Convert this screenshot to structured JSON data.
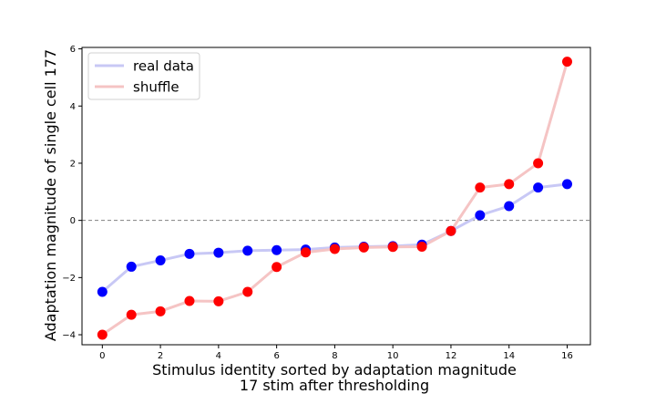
{
  "chart_data": {
    "type": "line",
    "xlabel_lines": [
      "Stimulus identity sorted by adaptation magnitude",
      "17 stim after thresholding"
    ],
    "ylabel": "Adaptation magnitude of single cell 177",
    "x": [
      0,
      1,
      2,
      3,
      4,
      5,
      6,
      7,
      8,
      9,
      10,
      11,
      12,
      13,
      14,
      15,
      16
    ],
    "xlim": [
      -0.7,
      16.8
    ],
    "ylim": [
      -4.35,
      6.05
    ],
    "xticks": [
      0,
      2,
      4,
      6,
      8,
      10,
      12,
      14,
      16
    ],
    "yticks": [
      -4,
      -2,
      0,
      2,
      4,
      6
    ],
    "reference_line": {
      "y": 0,
      "style": "dashed",
      "color": "#808080"
    },
    "legend_position": "top-left",
    "series": [
      {
        "name": "real data",
        "line_color": "#c8c8f5",
        "marker_color": "#0000ff",
        "values": [
          -2.5,
          -1.62,
          -1.4,
          -1.17,
          -1.13,
          -1.06,
          -1.04,
          -1.02,
          -0.95,
          -0.92,
          -0.9,
          -0.85,
          -0.37,
          0.18,
          0.5,
          1.15,
          1.27
        ]
      },
      {
        "name": "shuffle",
        "line_color": "#f5c4c4",
        "marker_color": "#ff0000",
        "values": [
          -4.0,
          -3.3,
          -3.18,
          -2.82,
          -2.83,
          -2.5,
          -1.63,
          -1.12,
          -1.0,
          -0.95,
          -0.93,
          -0.92,
          -0.37,
          1.15,
          1.27,
          2.0,
          5.55
        ]
      }
    ]
  }
}
